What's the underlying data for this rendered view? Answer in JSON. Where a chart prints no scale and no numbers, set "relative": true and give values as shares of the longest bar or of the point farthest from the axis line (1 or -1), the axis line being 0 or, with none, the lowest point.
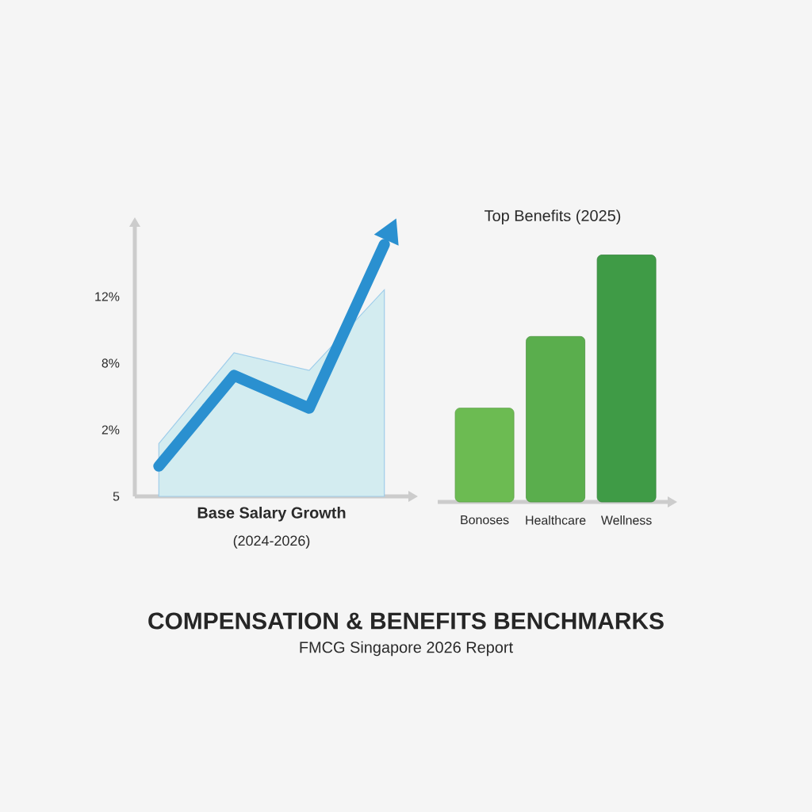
{
  "chart_data": [
    {
      "type": "line",
      "xlabel": "Base Salary Growth",
      "subtitle": "(2024-2026)",
      "relative": true,
      "categories": [
        null,
        null,
        null,
        null
      ],
      "annotations": [
        "5",
        "2%",
        "8%",
        "12%"
      ],
      "series": [
        {
          "color": "#2a90d0",
          "values": [
            0.12,
            0.48,
            0.35,
            1
          ],
          "lower": [
            0,
            0,
            0,
            0
          ],
          "upper": [
            0.21,
            0.57,
            0.5,
            0.82
          ]
        }
      ]
    },
    {
      "type": "bar",
      "title": "Top Benefits (2025)",
      "categories": [
        "Bonoses",
        "Healthcare",
        "Wellness"
      ],
      "relative": true,
      "values": [
        0.38,
        0.67,
        1
      ],
      "colors": [
        "#6cbb52",
        "#5aae4d",
        "#3f9b46"
      ]
    },
    {
      "type": "other",
      "title": "COMPENSATION & BENEFITS BENCHMARKS",
      "subtitle": "FMCG Singapore 2026 Report"
    }
  ]
}
